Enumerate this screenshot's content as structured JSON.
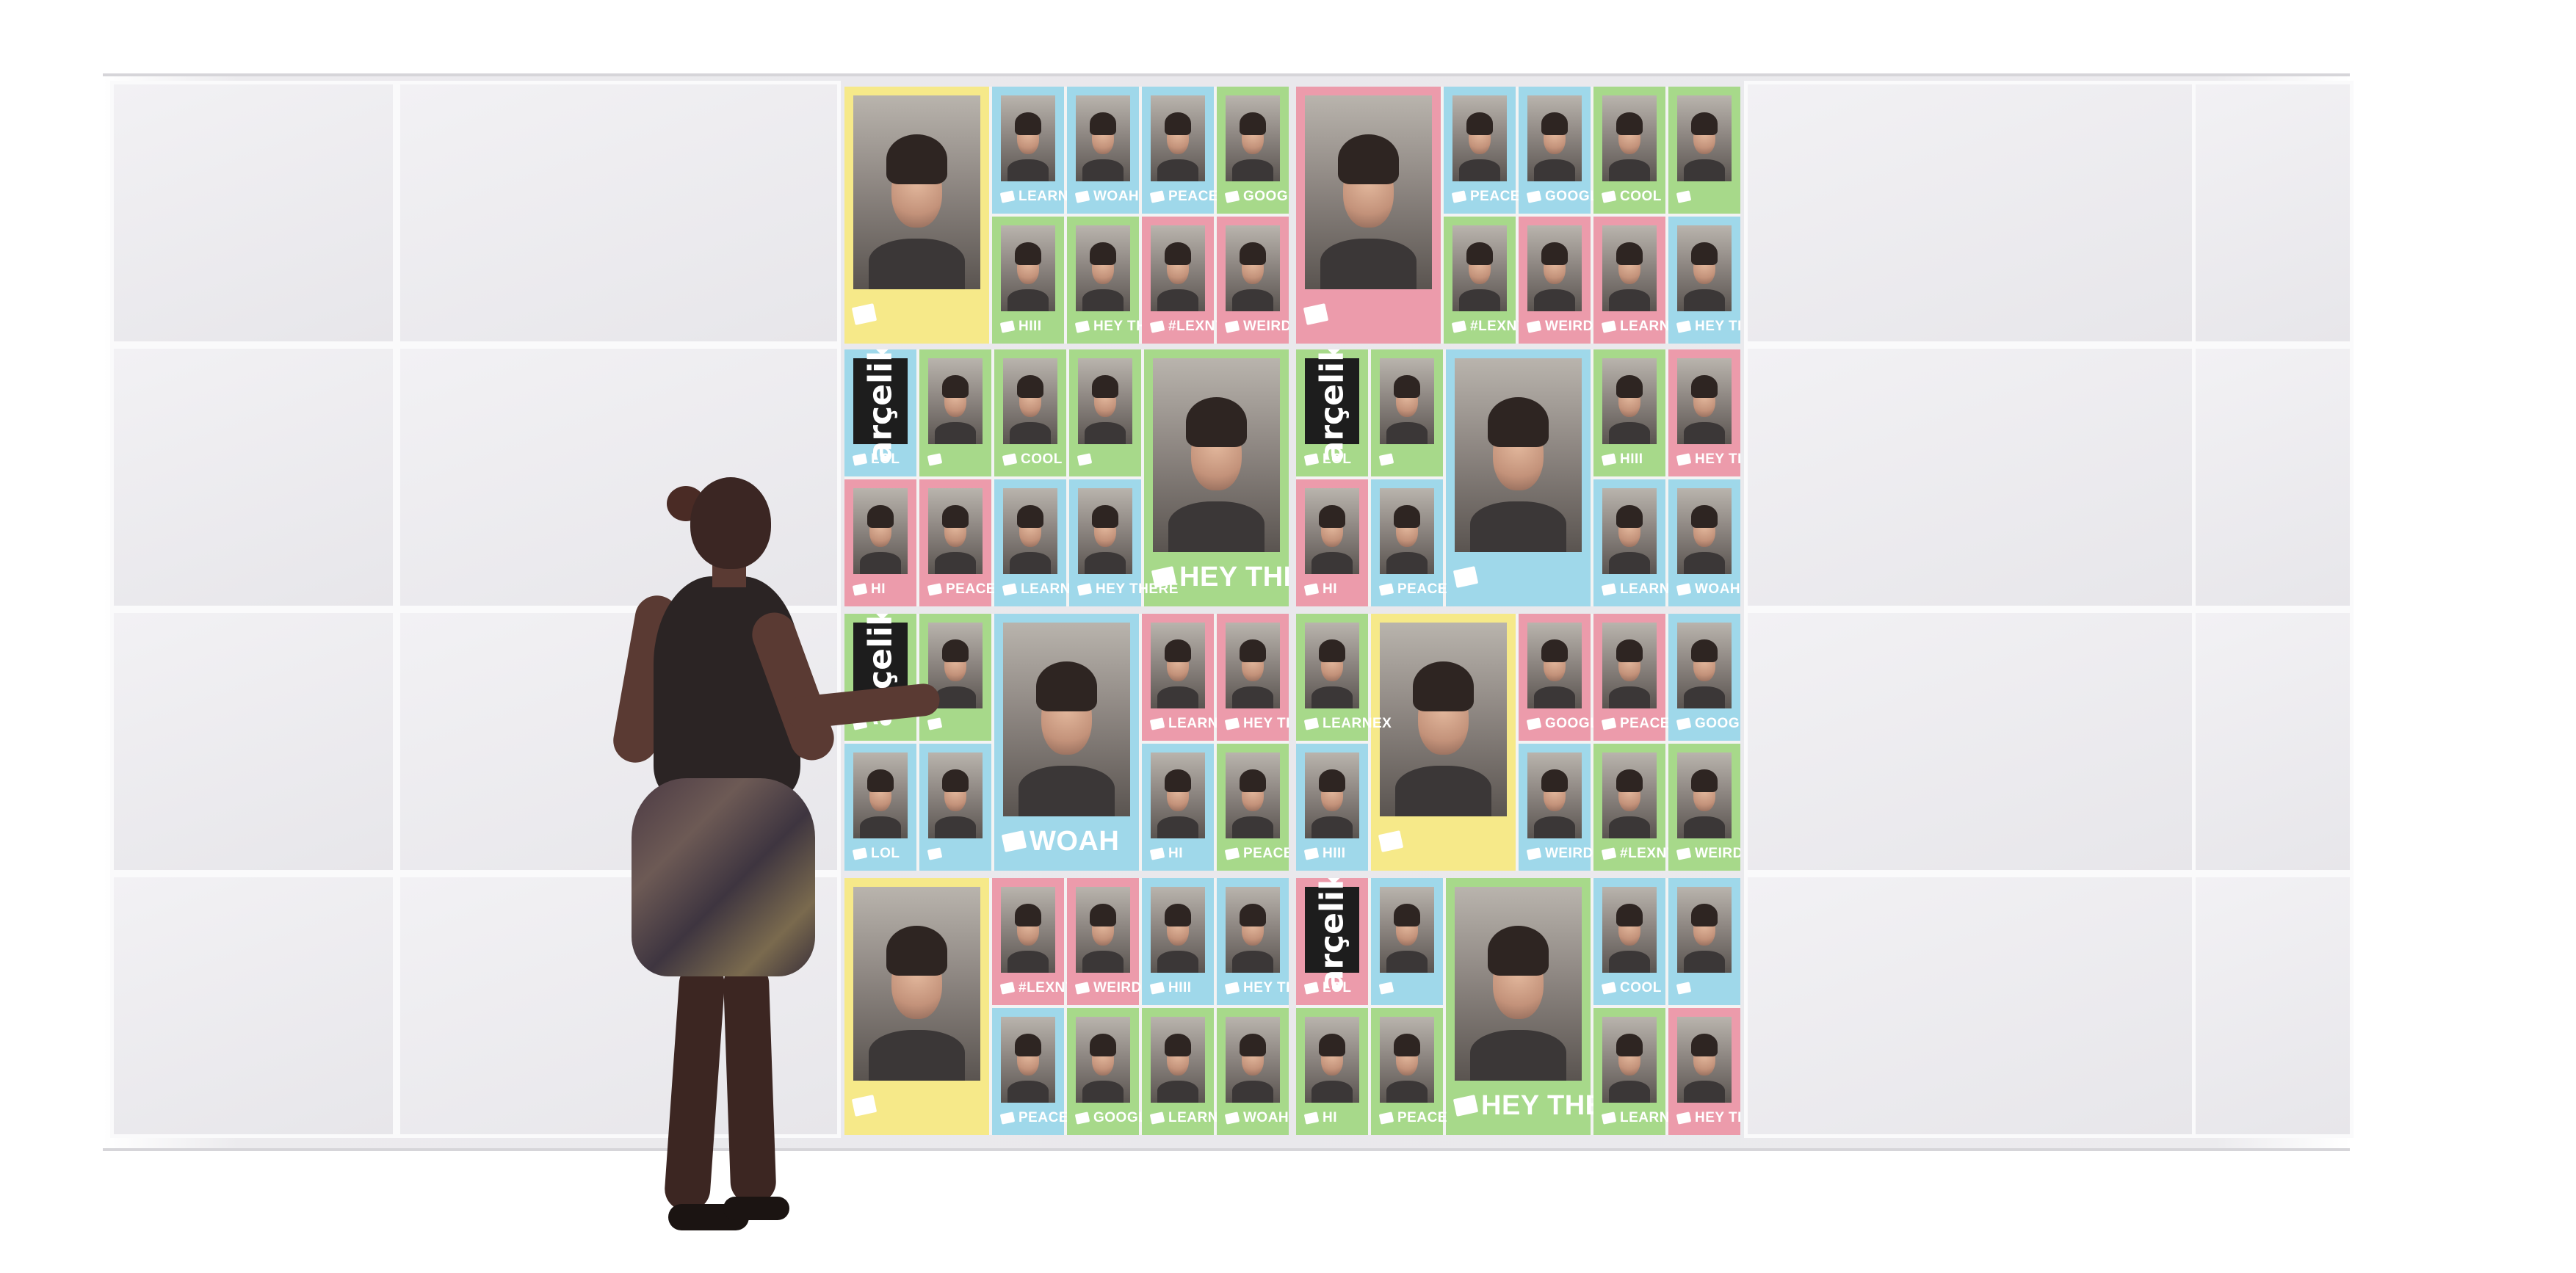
{
  "colors": {
    "yellow": "#f6e989",
    "pink": "#ec9bab",
    "blue": "#9fd8ea",
    "green": "#a7d98a",
    "wall": "#e9e8ec"
  },
  "logo_text": "arçelik",
  "screens": {
    "s1": {
      "big": {
        "caption": ""
      },
      "cells": [
        "LEARNEX",
        "WOAH",
        "PEACE",
        "GOOGLEEE",
        "HIII",
        "HEY THERE",
        "#LEXNYR",
        "WEIRD"
      ]
    },
    "s2": {
      "big": {
        "caption": ""
      },
      "cells": [
        "PEACE",
        "GOOGLEEE",
        "COOL",
        "",
        "#LEXNYR",
        "WEIRD",
        "LEARNEX",
        "HEY THERE"
      ]
    },
    "s3": {
      "big": {
        "caption": "HEY THERE"
      },
      "cells": [
        "LOL",
        "",
        "COOL",
        "",
        "HI",
        "PEACE",
        "LEARNEX",
        "HEY THERE"
      ]
    },
    "s4": {
      "big": {
        "caption": ""
      },
      "cells": [
        "LOL",
        "",
        "HIII",
        "HEY THERE",
        "HI",
        "PEACE",
        "LEARNEX",
        "WOAH"
      ]
    },
    "s5": {
      "big": {
        "caption": "WOAH"
      },
      "cells": [
        "",
        "",
        "LEARNEX",
        "HEY THERE",
        "LOL",
        "",
        "HI",
        "PEACE"
      ]
    },
    "s6": {
      "big": {
        "caption": ""
      },
      "cells": [
        "LEARNEX",
        "GOOGLEEE",
        "PEACE",
        "GOOGLEEE",
        "HIII",
        "WEIRD",
        "#LEXNYR",
        "WEIRD"
      ]
    },
    "s7": {
      "big": {
        "caption": ""
      },
      "cells": [
        "#LEXNYR",
        "WEIRD",
        "HIII",
        "HEY THERE",
        "PEACE",
        "GOOGLEEE",
        "LEARNEX",
        "WOAH"
      ]
    },
    "s8": {
      "big": {
        "caption": "HEY THERE"
      },
      "cells": [
        "LOL",
        "",
        "COOL",
        "",
        "HI",
        "PEACE",
        "LEARNEX",
        "HEY THERE"
      ]
    }
  }
}
